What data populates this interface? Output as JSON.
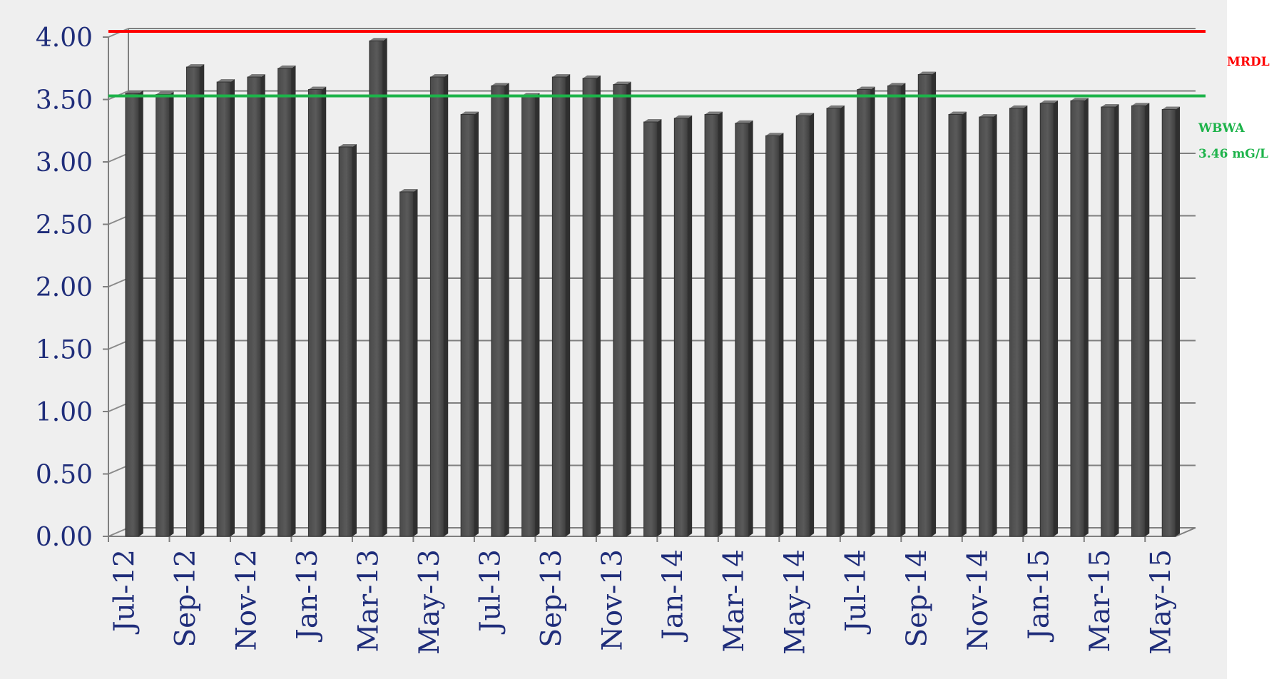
{
  "chart_data": {
    "type": "bar",
    "title": "",
    "xlabel": "",
    "ylabel": "",
    "ylim": [
      0,
      4
    ],
    "yticks": [
      "0.00",
      "0.50",
      "1.00",
      "1.50",
      "2.00",
      "2.50",
      "3.00",
      "3.50",
      "4.00"
    ],
    "ytick_values": [
      0,
      0.5,
      1,
      1.5,
      2,
      2.5,
      3,
      3.5,
      4
    ],
    "categories": [
      "Jul-12",
      "Aug-12",
      "Sep-12",
      "Oct-12",
      "Nov-12",
      "Dec-12",
      "Jan-13",
      "Feb-13",
      "Mar-13",
      "Apr-13",
      "May-13",
      "Jun-13",
      "Jul-13",
      "Aug-13",
      "Sep-13",
      "Oct-13",
      "Nov-13",
      "Dec-13",
      "Jan-14",
      "Feb-14",
      "Mar-14",
      "Apr-14",
      "May-14",
      "Jun-14",
      "Jul-14",
      "Aug-14",
      "Sep-14",
      "Oct-14",
      "Nov-14",
      "Dec-14",
      "Jan-15",
      "Feb-15",
      "Mar-15",
      "Apr-15",
      "May-15"
    ],
    "xtick_labels": [
      "Jul-12",
      "Sep-12",
      "Nov-12",
      "Jan-13",
      "Mar-13",
      "May-13",
      "Jul-13",
      "Sep-13",
      "Nov-13",
      "Jan-14",
      "Mar-14",
      "May-14",
      "Jul-14",
      "Sep-14",
      "Nov-14",
      "Jan-15",
      "Mar-15",
      "May-15"
    ],
    "values": [
      3.55,
      3.54,
      3.76,
      3.64,
      3.68,
      3.75,
      3.58,
      3.12,
      3.97,
      2.76,
      3.68,
      3.38,
      3.61,
      3.53,
      3.68,
      3.67,
      3.62,
      3.32,
      3.35,
      3.38,
      3.31,
      3.21,
      3.37,
      3.43,
      3.58,
      3.61,
      3.7,
      3.38,
      3.36,
      3.43,
      3.47,
      3.49,
      3.44,
      3.45,
      3.42
    ],
    "bar_color": "#5a5a5a",
    "grid": true,
    "reference_lines": [
      {
        "name": "MRDL",
        "value": 4.0,
        "color": "#ff0000",
        "label": "MRDL",
        "label_sublabel": ""
      },
      {
        "name": "WBWA",
        "value": 3.46,
        "color": "#1db34a",
        "label": "WBWA",
        "label_sublabel": "3.46 mG/L"
      }
    ]
  }
}
